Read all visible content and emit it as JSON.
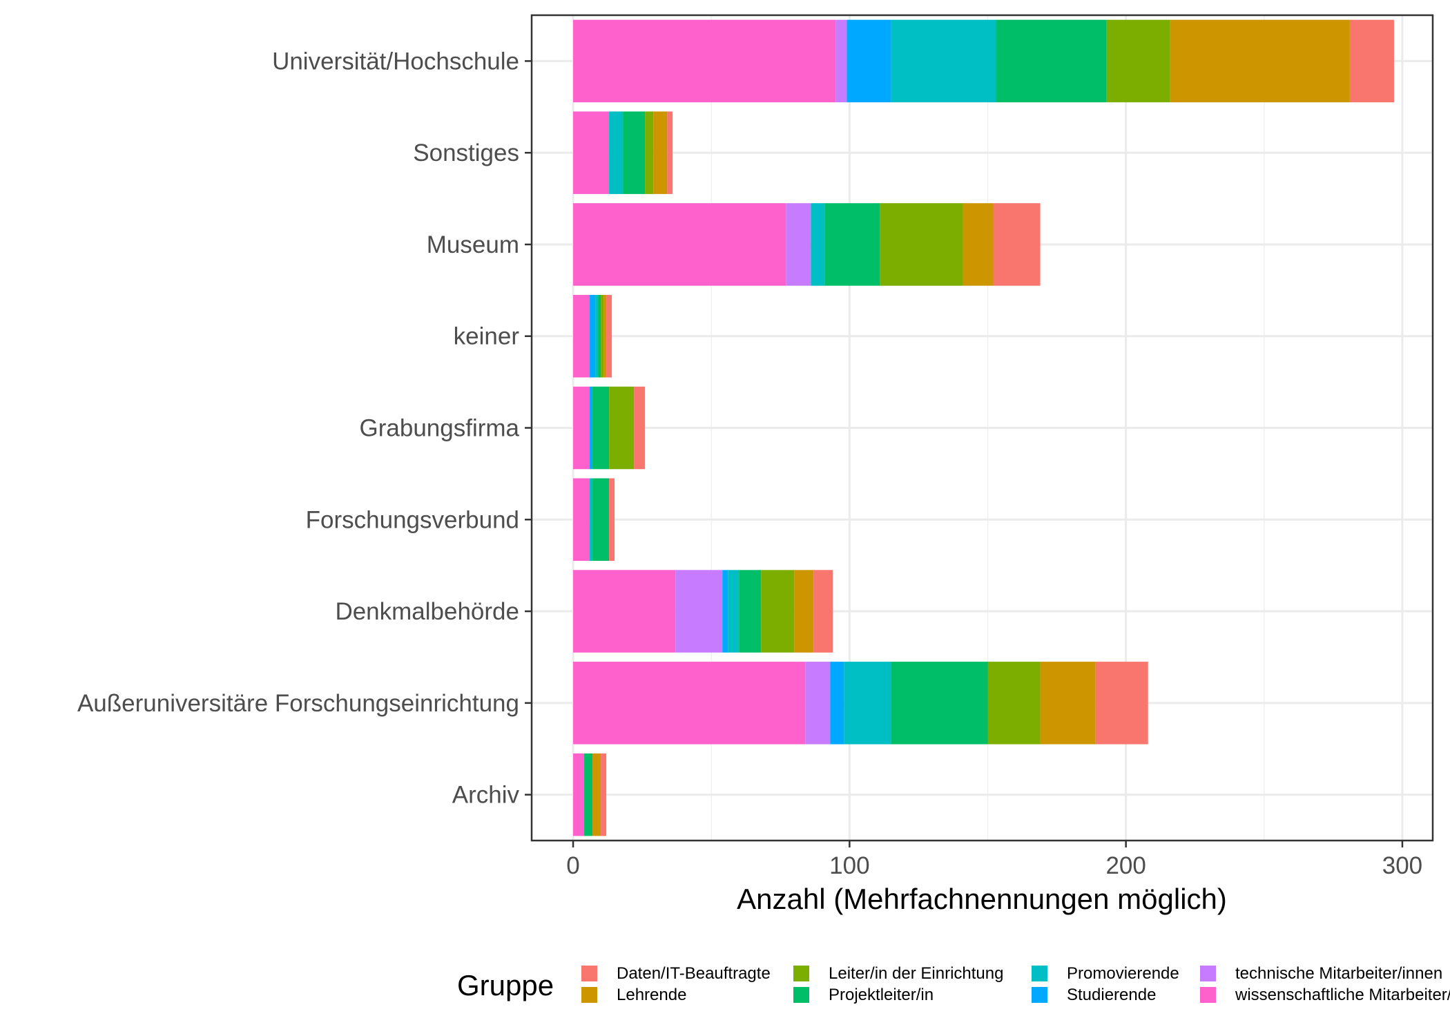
{
  "chart_data": {
    "type": "bar",
    "orientation": "horizontal",
    "stacked": true,
    "title": "",
    "xlabel": "Anzahl (Mehrfachnennungen möglich)",
    "ylabel": "",
    "xlim": [
      -15,
      311
    ],
    "x_ticks": [
      0,
      100,
      200,
      300
    ],
    "grid": true,
    "legend_title": "Gruppe",
    "legend_position": "bottom",
    "categories": [
      "Universität/Hochschule",
      "Sonstiges",
      "Museum",
      "keiner",
      "Grabungsfirma",
      "Forschungsverbund",
      "Denkmalbehörde",
      "Außeruniversitäre Forschungseinrichtung",
      "Archiv"
    ],
    "series": [
      {
        "name": "wissenschaftliche Mitarbeiter/innen",
        "color": "#FF61CC",
        "values": [
          95,
          13,
          77,
          6,
          6,
          6,
          37,
          84,
          4
        ]
      },
      {
        "name": "technische Mitarbeiter/innen",
        "color": "#C77CFF",
        "values": [
          4,
          0,
          9,
          0,
          0,
          0,
          17,
          9,
          0
        ]
      },
      {
        "name": "Studierende",
        "color": "#00A9FF",
        "values": [
          16,
          0,
          0,
          2,
          1,
          0,
          2,
          5,
          0
        ]
      },
      {
        "name": "Promovierende",
        "color": "#00BFC4",
        "values": [
          38,
          5,
          5,
          1,
          0,
          1,
          4,
          17,
          0
        ]
      },
      {
        "name": "Projektleiter/in",
        "color": "#00BE67",
        "values": [
          40,
          8,
          20,
          1,
          6,
          6,
          8,
          35,
          3
        ]
      },
      {
        "name": "Leiter/in der Einrichtung",
        "color": "#7CAE00",
        "values": [
          23,
          3,
          30,
          1,
          9,
          0,
          12,
          19,
          0
        ]
      },
      {
        "name": "Lehrende",
        "color": "#CD9600",
        "values": [
          65,
          5,
          11,
          1,
          0,
          0,
          7,
          20,
          3
        ]
      },
      {
        "name": "Daten/IT-Beauftragte",
        "color": "#F8766D",
        "values": [
          16,
          2,
          17,
          2,
          4,
          2,
          7,
          19,
          2
        ]
      }
    ]
  },
  "legend": {
    "title": "Gruppe",
    "items": [
      {
        "label": "Daten/IT-Beauftragte",
        "color": "#F8766D"
      },
      {
        "label": "Lehrende",
        "color": "#CD9600"
      },
      {
        "label": "Leiter/in der Einrichtung",
        "color": "#7CAE00"
      },
      {
        "label": "Projektleiter/in",
        "color": "#00BE67"
      },
      {
        "label": "Promovierende",
        "color": "#00BFC4"
      },
      {
        "label": "Studierende",
        "color": "#00A9FF"
      },
      {
        "label": "technische Mitarbeiter/innen",
        "color": "#C77CFF"
      },
      {
        "label": "wissenschaftliche Mitarbeiter/innen",
        "color": "#FF61CC"
      }
    ]
  }
}
